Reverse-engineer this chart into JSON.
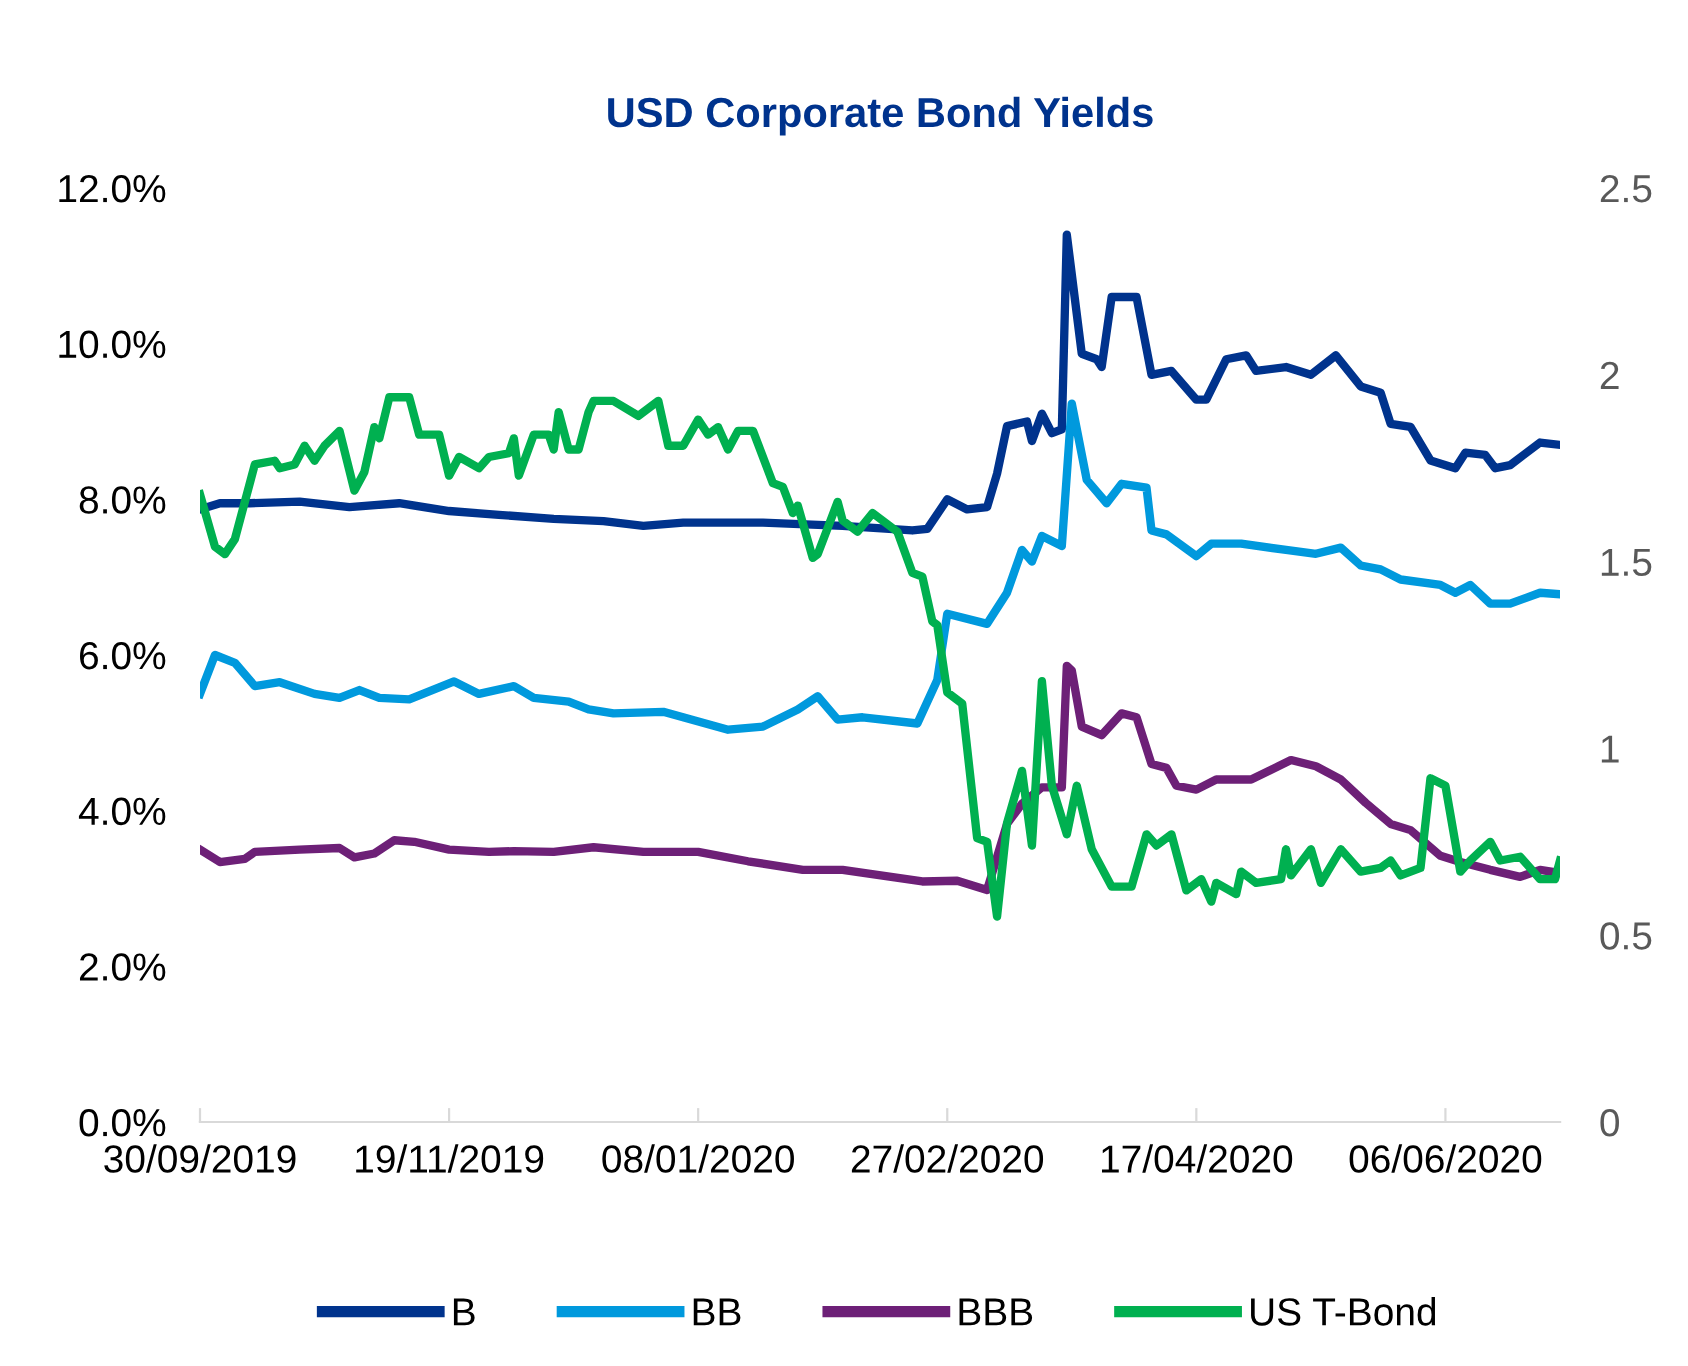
{
  "chart_data": {
    "type": "line",
    "title": "USD Corporate Bond Yields",
    "xlim": [
      "2019-09-30",
      "2020-06-29"
    ],
    "xticks": [
      {
        "value": "2019-09-30",
        "label": "30/09/2019"
      },
      {
        "value": "2019-11-19",
        "label": "19/11/2019"
      },
      {
        "value": "2020-01-08",
        "label": "08/01/2020"
      },
      {
        "value": "2020-02-27",
        "label": "27/02/2020"
      },
      {
        "value": "2020-04-17",
        "label": "17/04/2020"
      },
      {
        "value": "2020-06-06",
        "label": "06/06/2020"
      }
    ],
    "ylim": [
      0,
      12
    ],
    "yticks": [
      {
        "value": 0,
        "label": "0.0%"
      },
      {
        "value": 2,
        "label": "2.0%"
      },
      {
        "value": 4,
        "label": "4.0%"
      },
      {
        "value": 6,
        "label": "6.0%"
      },
      {
        "value": 8,
        "label": "8.0%"
      },
      {
        "value": 10,
        "label": "10.0%"
      },
      {
        "value": 12,
        "label": "12.0%"
      }
    ],
    "y2lim": [
      0,
      2.5
    ],
    "y2ticks": [
      0,
      {
        "value": 0.5,
        "label": "0.5"
      },
      1,
      {
        "value": 1.5,
        "label": "1.5"
      },
      2,
      {
        "value": 2.5,
        "label": "2.5"
      }
    ],
    "grid": false,
    "legend": "bottom",
    "marker": "none",
    "line_style": "solid",
    "series": [
      {
        "name": "B",
        "color": "#00338d",
        "x": [
          "2019-09-30",
          "2019-10-04",
          "2019-10-10",
          "2019-10-20",
          "2019-10-30",
          "2019-11-09",
          "2019-11-19",
          "2019-11-29",
          "2019-12-10",
          "2019-12-20",
          "2019-12-28",
          "2020-01-05",
          "2020-01-21",
          "2020-02-06",
          "2020-02-20",
          "2020-02-23",
          "2020-02-27",
          "2020-03-02",
          "2020-03-06",
          "2020-03-08",
          "2020-03-10",
          "2020-03-14",
          "2020-03-15",
          "2020-03-17",
          "2020-03-19",
          "2020-03-21",
          "2020-03-22",
          "2020-03-25",
          "2020-03-28",
          "2020-03-29",
          "2020-03-31",
          "2020-04-05",
          "2020-04-08",
          "2020-04-12",
          "2020-04-17",
          "2020-04-19",
          "2020-04-23",
          "2020-04-27",
          "2020-04-29",
          "2020-05-05",
          "2020-05-10",
          "2020-05-15",
          "2020-05-20",
          "2020-05-24",
          "2020-05-26",
          "2020-05-30",
          "2020-06-03",
          "2020-06-08",
          "2020-06-10",
          "2020-06-14",
          "2020-06-16",
          "2020-06-19",
          "2020-06-25",
          "2020-06-29"
        ],
        "values": [
          7.87,
          7.95,
          7.95,
          7.97,
          7.9,
          7.95,
          7.85,
          7.8,
          7.75,
          7.72,
          7.66,
          7.7,
          7.7,
          7.66,
          7.6,
          7.62,
          8.0,
          7.87,
          7.9,
          8.33,
          8.94,
          9.0,
          8.75,
          9.1,
          8.85,
          8.9,
          11.4,
          9.87,
          9.8,
          9.7,
          10.6,
          10.6,
          9.6,
          9.65,
          9.28,
          9.28,
          9.8,
          9.85,
          9.65,
          9.7,
          9.6,
          9.85,
          9.45,
          9.37,
          8.97,
          8.93,
          8.5,
          8.4,
          8.6,
          8.57,
          8.4,
          8.44,
          8.73,
          8.7
        ]
      },
      {
        "name": "BB",
        "color": "#0099dd",
        "x": [
          "2019-09-30",
          "2019-10-03",
          "2019-10-07",
          "2019-10-11",
          "2019-10-16",
          "2019-10-23",
          "2019-10-28",
          "2019-11-01",
          "2019-11-05",
          "2019-11-11",
          "2019-11-20",
          "2019-11-25",
          "2019-12-02",
          "2019-12-06",
          "2019-12-13",
          "2019-12-17",
          "2019-12-22",
          "2020-01-01",
          "2020-01-14",
          "2020-01-21",
          "2020-01-28",
          "2020-02-01",
          "2020-02-05",
          "2020-02-10",
          "2020-02-21",
          "2020-02-25",
          "2020-02-27",
          "2020-03-06",
          "2020-03-10",
          "2020-03-13",
          "2020-03-15",
          "2020-03-17",
          "2020-03-21",
          "2020-03-23",
          "2020-03-26",
          "2020-03-30",
          "2020-04-02",
          "2020-04-07",
          "2020-04-08",
          "2020-04-11",
          "2020-04-17",
          "2020-04-20",
          "2020-04-26",
          "2020-05-05",
          "2020-05-11",
          "2020-05-16",
          "2020-05-20",
          "2020-05-24",
          "2020-05-28",
          "2020-06-05",
          "2020-06-08",
          "2020-06-11",
          "2020-06-15",
          "2020-06-19",
          "2020-06-25",
          "2020-06-29"
        ],
        "values": [
          5.5,
          6.0,
          5.9,
          5.6,
          5.65,
          5.5,
          5.45,
          5.55,
          5.45,
          5.43,
          5.66,
          5.5,
          5.6,
          5.45,
          5.4,
          5.3,
          5.25,
          5.27,
          5.04,
          5.08,
          5.3,
          5.47,
          5.17,
          5.2,
          5.12,
          5.68,
          6.53,
          6.4,
          6.8,
          7.35,
          7.2,
          7.53,
          7.4,
          9.23,
          8.25,
          7.95,
          8.2,
          8.15,
          7.6,
          7.55,
          7.27,
          7.43,
          7.43,
          7.35,
          7.3,
          7.38,
          7.15,
          7.1,
          6.97,
          6.9,
          6.8,
          6.9,
          6.66,
          6.66,
          6.8,
          6.78
        ]
      },
      {
        "name": "BBB",
        "color": "#6d2077",
        "x": [
          "2019-09-30",
          "2019-10-04",
          "2019-10-09",
          "2019-10-11",
          "2019-10-20",
          "2019-10-28",
          "2019-10-31",
          "2019-11-04",
          "2019-11-08",
          "2019-11-12",
          "2019-11-19",
          "2019-11-27",
          "2019-12-02",
          "2019-12-10",
          "2019-12-18",
          "2019-12-28",
          "2020-01-08",
          "2020-01-18",
          "2020-01-29",
          "2020-02-06",
          "2020-02-22",
          "2020-02-29",
          "2020-03-06",
          "2020-03-10",
          "2020-03-13",
          "2020-03-17",
          "2020-03-21",
          "2020-03-22",
          "2020-03-23",
          "2020-03-25",
          "2020-03-29",
          "2020-04-02",
          "2020-04-05",
          "2020-04-08",
          "2020-04-11",
          "2020-04-13",
          "2020-04-17",
          "2020-04-21",
          "2020-04-28",
          "2020-05-06",
          "2020-05-11",
          "2020-05-16",
          "2020-05-21",
          "2020-05-26",
          "2020-05-30",
          "2020-06-05",
          "2020-06-09",
          "2020-06-15",
          "2020-06-21",
          "2020-06-25",
          "2020-06-29"
        ],
        "values": [
          3.5,
          3.34,
          3.38,
          3.47,
          3.5,
          3.52,
          3.4,
          3.45,
          3.62,
          3.6,
          3.5,
          3.47,
          3.48,
          3.47,
          3.53,
          3.47,
          3.47,
          3.35,
          3.24,
          3.24,
          3.09,
          3.1,
          2.98,
          3.83,
          4.09,
          4.3,
          4.3,
          5.86,
          5.8,
          5.08,
          4.97,
          5.25,
          5.2,
          4.6,
          4.55,
          4.32,
          4.27,
          4.4,
          4.4,
          4.65,
          4.57,
          4.4,
          4.1,
          3.83,
          3.75,
          3.42,
          3.34,
          3.24,
          3.15,
          3.24,
          3.2
        ]
      },
      {
        "name": "US T-Bond",
        "color": "#00b050",
        "axis": "y2",
        "x": [
          "2019-09-30",
          "2019-10-03",
          "2019-10-05",
          "2019-10-07",
          "2019-10-11",
          "2019-10-15",
          "2019-10-16",
          "2019-10-19",
          "2019-10-21",
          "2019-10-23",
          "2019-10-25",
          "2019-10-28",
          "2019-10-31",
          "2019-11-02",
          "2019-11-04",
          "2019-11-05",
          "2019-11-07",
          "2019-11-11",
          "2019-11-13",
          "2019-11-17",
          "2019-11-19",
          "2019-11-21",
          "2019-11-25",
          "2019-11-27",
          "2019-12-01",
          "2019-12-02",
          "2019-12-03",
          "2019-12-06",
          "2019-12-09",
          "2019-12-10",
          "2019-12-11",
          "2019-12-13",
          "2019-12-15",
          "2019-12-17",
          "2019-12-18",
          "2019-12-22",
          "2019-12-27",
          "2019-12-31",
          "2020-01-02",
          "2020-01-05",
          "2020-01-08",
          "2020-01-10",
          "2020-01-12",
          "2020-01-14",
          "2020-01-16",
          "2020-01-19",
          "2020-01-23",
          "2020-01-25",
          "2020-01-27",
          "2020-01-28",
          "2020-01-31",
          "2020-02-01",
          "2020-02-05",
          "2020-02-06",
          "2020-02-09",
          "2020-02-12",
          "2020-02-15",
          "2020-02-17",
          "2020-02-20",
          "2020-02-22",
          "2020-02-24",
          "2020-02-25",
          "2020-02-27",
          "2020-03-01",
          "2020-03-04",
          "2020-03-06",
          "2020-03-08",
          "2020-03-10",
          "2020-03-13",
          "2020-03-15",
          "2020-03-17",
          "2020-03-19",
          "2020-03-22",
          "2020-03-24",
          "2020-03-27",
          "2020-03-31",
          "2020-04-04",
          "2020-04-07",
          "2020-04-09",
          "2020-04-12",
          "2020-04-15",
          "2020-04-18",
          "2020-04-20",
          "2020-04-21",
          "2020-04-25",
          "2020-04-26",
          "2020-04-29",
          "2020-05-04",
          "2020-05-05",
          "2020-05-06",
          "2020-05-10",
          "2020-05-12",
          "2020-05-16",
          "2020-05-20",
          "2020-05-24",
          "2020-05-26",
          "2020-05-28",
          "2020-06-01",
          "2020-06-03",
          "2020-06-06",
          "2020-06-09",
          "2020-06-11",
          "2020-06-15",
          "2020-06-17",
          "2020-06-21",
          "2020-06-25",
          "2020-06-28",
          "2020-06-29"
        ],
        "values": [
          1.68,
          1.54,
          1.52,
          1.56,
          1.76,
          1.77,
          1.75,
          1.76,
          1.81,
          1.77,
          1.81,
          1.85,
          1.69,
          1.74,
          1.86,
          1.83,
          1.94,
          1.94,
          1.84,
          1.84,
          1.73,
          1.78,
          1.75,
          1.78,
          1.79,
          1.83,
          1.73,
          1.84,
          1.84,
          1.8,
          1.9,
          1.8,
          1.8,
          1.9,
          1.93,
          1.93,
          1.89,
          1.93,
          1.81,
          1.81,
          1.88,
          1.84,
          1.86,
          1.8,
          1.85,
          1.85,
          1.71,
          1.7,
          1.63,
          1.65,
          1.51,
          1.52,
          1.66,
          1.61,
          1.58,
          1.63,
          1.6,
          1.58,
          1.47,
          1.46,
          1.34,
          1.33,
          1.15,
          1.12,
          0.76,
          0.75,
          0.55,
          0.8,
          0.94,
          0.74,
          1.18,
          0.9,
          0.77,
          0.9,
          0.73,
          0.63,
          0.63,
          0.77,
          0.74,
          0.77,
          0.62,
          0.65,
          0.59,
          0.64,
          0.61,
          0.67,
          0.64,
          0.65,
          0.73,
          0.66,
          0.73,
          0.64,
          0.73,
          0.67,
          0.68,
          0.7,
          0.66,
          0.68,
          0.92,
          0.9,
          0.67,
          0.7,
          0.75,
          0.7,
          0.71,
          0.65,
          0.65,
          0.7
        ]
      }
    ]
  }
}
